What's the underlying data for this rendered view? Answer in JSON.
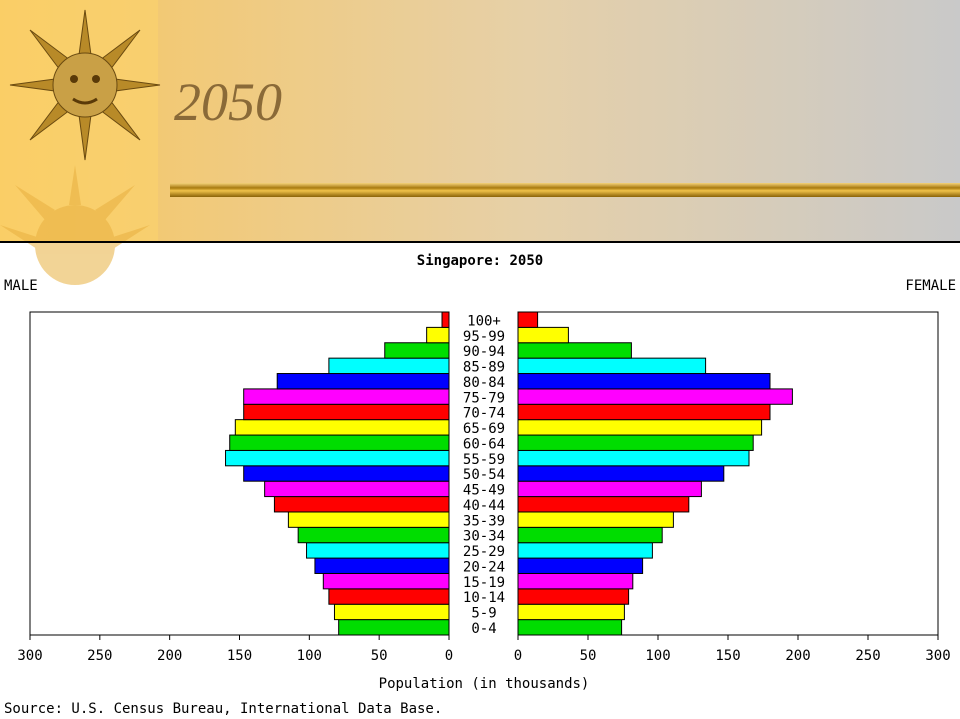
{
  "slide": {
    "title": "2050"
  },
  "chart_data": {
    "type": "pyramid",
    "title": "Singapore: 2050",
    "categories": [
      "0-4",
      "5-9",
      "10-14",
      "15-19",
      "20-24",
      "25-29",
      "30-34",
      "35-39",
      "40-44",
      "45-49",
      "50-54",
      "55-59",
      "60-64",
      "65-69",
      "70-74",
      "75-79",
      "80-84",
      "85-89",
      "90-94",
      "95-99",
      "100+"
    ],
    "colors": [
      "#00dd00",
      "#ffff00",
      "#ff0000",
      "#ff00ff",
      "#0000ff",
      "#00ffff"
    ],
    "series": [
      {
        "name": "MALE",
        "values": [
          79,
          82,
          86,
          90,
          96,
          102,
          108,
          115,
          125,
          132,
          147,
          160,
          157,
          153,
          147,
          147,
          123,
          86,
          46,
          16,
          5
        ]
      },
      {
        "name": "FEMALE",
        "values": [
          74,
          76,
          79,
          82,
          89,
          96,
          103,
          111,
          122,
          131,
          147,
          165,
          168,
          174,
          180,
          196,
          180,
          134,
          81,
          36,
          14
        ]
      }
    ],
    "xlim": [
      0,
      300
    ],
    "xticks": [
      0,
      50,
      100,
      150,
      200,
      250,
      300
    ],
    "xlabel": "Population (in thousands)",
    "source": "Source: U.S. Census Bureau, International Data Base."
  }
}
